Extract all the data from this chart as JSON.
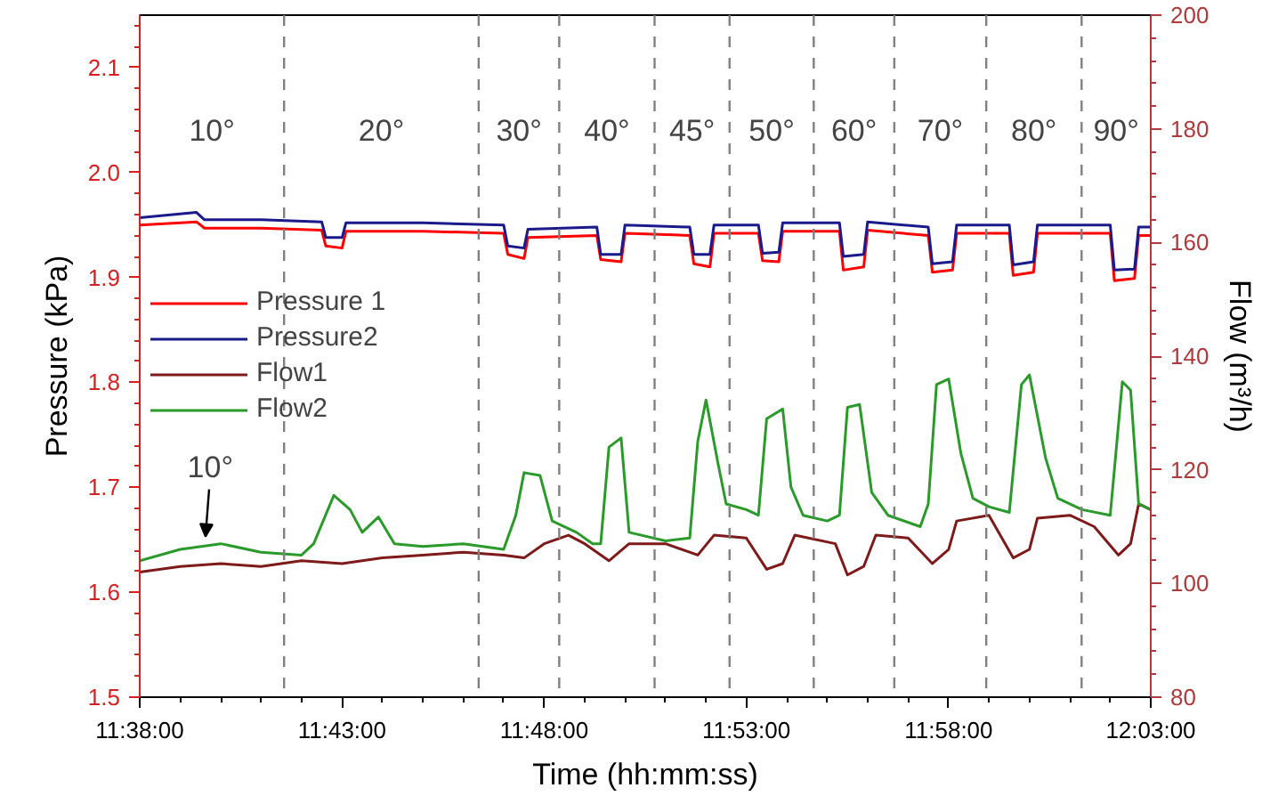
{
  "chart_data": {
    "type": "line",
    "xlabel": "Time (hh:mm:ss)",
    "ylabel": "Pressure (kPa)",
    "y2label": "Flow (m³/h)",
    "xlim": [
      11.6333,
      12.05
    ],
    "ylim": [
      1.5,
      2.15
    ],
    "y2lim": [
      80,
      200
    ],
    "xticks": [
      {
        "value": 11.6333,
        "label": "11:38:00"
      },
      {
        "value": 11.65,
        "label": null
      },
      {
        "value": 11.6667,
        "label": null
      },
      {
        "value": 11.6833,
        "label": null
      },
      {
        "value": 11.7,
        "label": null
      },
      {
        "value": 11.7167,
        "label": "11:43:00"
      },
      {
        "value": 11.7333,
        "label": null
      },
      {
        "value": 11.75,
        "label": null
      },
      {
        "value": 11.7667,
        "label": null
      },
      {
        "value": 11.7833,
        "label": null
      },
      {
        "value": 11.8,
        "label": "11:48:00"
      },
      {
        "value": 11.8167,
        "label": null
      },
      {
        "value": 11.8333,
        "label": null
      },
      {
        "value": 11.85,
        "label": null
      },
      {
        "value": 11.8667,
        "label": null
      },
      {
        "value": 11.8833,
        "label": "11:53:00"
      },
      {
        "value": 11.9,
        "label": null
      },
      {
        "value": 11.9167,
        "label": null
      },
      {
        "value": 11.9333,
        "label": null
      },
      {
        "value": 11.95,
        "label": null
      },
      {
        "value": 11.9667,
        "label": "11:58:00"
      },
      {
        "value": 11.9833,
        "label": null
      },
      {
        "value": 12.0,
        "label": null
      },
      {
        "value": 12.0167,
        "label": null
      },
      {
        "value": 12.0333,
        "label": null
      },
      {
        "value": 12.05,
        "label": "12:03:00"
      }
    ],
    "yticks": [
      1.5,
      {
        "value": 1.52,
        "label": null
      },
      {
        "value": 1.54,
        "label": null
      },
      {
        "value": 1.56,
        "label": null
      },
      {
        "value": 1.58,
        "label": null
      },
      1.6,
      {
        "value": 1.62,
        "label": null
      },
      {
        "value": 1.64,
        "label": null
      },
      {
        "value": 1.66,
        "label": null
      },
      {
        "value": 1.68,
        "label": null
      },
      1.7,
      {
        "value": 1.72,
        "label": null
      },
      {
        "value": 1.74,
        "label": null
      },
      {
        "value": 1.76,
        "label": null
      },
      {
        "value": 1.78,
        "label": null
      },
      1.8,
      {
        "value": 1.82,
        "label": null
      },
      {
        "value": 1.84,
        "label": null
      },
      {
        "value": 1.86,
        "label": null
      },
      {
        "value": 1.88,
        "label": null
      },
      1.9,
      {
        "value": 1.92,
        "label": null
      },
      {
        "value": 1.94,
        "label": null
      },
      {
        "value": 1.96,
        "label": null
      },
      {
        "value": 1.98,
        "label": null
      },
      {
        "value": 2.0,
        "label": "2.0"
      },
      {
        "value": 2.02,
        "label": null
      },
      {
        "value": 2.04,
        "label": null
      },
      {
        "value": 2.06,
        "label": null
      },
      {
        "value": 2.08,
        "label": null
      },
      2.1,
      {
        "value": 2.12,
        "label": null
      },
      {
        "value": 2.14,
        "label": null
      }
    ],
    "y2ticks": [
      80,
      {
        "value": 84,
        "label": null
      },
      {
        "value": 88,
        "label": null
      },
      {
        "value": 92,
        "label": null
      },
      {
        "value": 96,
        "label": null
      },
      100,
      {
        "value": 104,
        "label": null
      },
      {
        "value": 108,
        "label": null
      },
      {
        "value": 112,
        "label": null
      },
      {
        "value": 116,
        "label": null
      },
      120,
      {
        "value": 124,
        "label": null
      },
      {
        "value": 128,
        "label": null
      },
      {
        "value": 132,
        "label": null
      },
      {
        "value": 136,
        "label": null
      },
      140,
      {
        "value": 144,
        "label": null
      },
      {
        "value": 148,
        "label": null
      },
      {
        "value": 152,
        "label": null
      },
      {
        "value": 156,
        "label": null
      },
      160,
      {
        "value": 164,
        "label": null
      },
      {
        "value": 168,
        "label": null
      },
      {
        "value": 172,
        "label": null
      },
      {
        "value": 176,
        "label": null
      },
      180,
      {
        "value": 184,
        "label": null
      },
      {
        "value": 188,
        "label": null
      },
      {
        "value": 192,
        "label": null
      },
      {
        "value": 196,
        "label": null
      },
      200
    ],
    "x": [
      11.6333,
      11.6567,
      11.66,
      11.6833,
      11.7083,
      11.71,
      11.7167,
      11.7183,
      11.75,
      11.7833,
      11.785,
      11.7917,
      11.7933,
      11.8217,
      11.8233,
      11.8317,
      11.8333,
      11.86,
      11.8617,
      11.8683,
      11.87,
      11.8883,
      11.89,
      11.8967,
      11.8983,
      11.9217,
      11.9233,
      11.9317,
      11.9333,
      11.9583,
      11.96,
      11.9683,
      11.97,
      11.9917,
      11.9933,
      12.0017,
      12.0033,
      12.0333,
      12.035,
      12.0433,
      12.045,
      12.05
    ],
    "series": [
      {
        "name": "Pressure 1",
        "color": "#ff0000",
        "values": [
          1.95,
          1.953,
          1.947,
          1.947,
          1.945,
          1.93,
          1.928,
          1.944,
          1.944,
          1.942,
          1.922,
          1.918,
          1.938,
          1.94,
          1.917,
          1.915,
          1.942,
          1.94,
          1.913,
          1.91,
          1.942,
          1.942,
          1.916,
          1.915,
          1.944,
          1.944,
          1.907,
          1.91,
          1.945,
          1.94,
          1.905,
          1.907,
          1.942,
          1.942,
          1.902,
          1.905,
          1.942,
          1.942,
          1.897,
          1.899,
          1.94,
          1.94
        ]
      },
      {
        "name": "Pressure2",
        "color": "#1a1a8c",
        "values": [
          1.957,
          1.962,
          1.955,
          1.955,
          1.953,
          1.938,
          1.938,
          1.952,
          1.952,
          1.95,
          1.93,
          1.928,
          1.946,
          1.948,
          1.922,
          1.922,
          1.95,
          1.948,
          1.922,
          1.922,
          1.95,
          1.95,
          1.923,
          1.924,
          1.952,
          1.952,
          1.92,
          1.922,
          1.953,
          1.948,
          1.913,
          1.915,
          1.95,
          1.95,
          1.912,
          1.915,
          1.95,
          1.95,
          1.907,
          1.908,
          1.948,
          1.948
        ]
      },
      {
        "name": "Flow1",
        "color": "#7f1a1a",
        "axis": "y2",
        "x": [
          11.6333,
          11.65,
          11.6667,
          11.6833,
          11.7,
          11.7167,
          11.7333,
          11.75,
          11.7667,
          11.7833,
          11.7917,
          11.8,
          11.81,
          11.8167,
          11.8267,
          11.835,
          11.85,
          11.8633,
          11.87,
          11.8833,
          11.8917,
          11.8983,
          11.9033,
          11.92,
          11.925,
          11.9317,
          11.9367,
          11.95,
          11.96,
          11.9667,
          11.97,
          11.9833,
          11.9933,
          12.0,
          12.0033,
          12.0167,
          12.0267,
          12.0367,
          12.0417,
          12.045,
          12.05
        ],
        "values": [
          102,
          103,
          103.5,
          103,
          104,
          103.5,
          104.5,
          105,
          105.5,
          105,
          104.5,
          107,
          108.5,
          107,
          104,
          107,
          107,
          105,
          108.5,
          108,
          102.5,
          103.5,
          108.5,
          107,
          101.5,
          103,
          108.5,
          108,
          103.5,
          106,
          111,
          112,
          104.5,
          106,
          111.5,
          112,
          110,
          105,
          107,
          114,
          113
        ]
      },
      {
        "name": "Flow2",
        "color": "#2a9a2a",
        "axis": "y2",
        "x": [
          11.6333,
          11.65,
          11.6667,
          11.6833,
          11.7,
          11.705,
          11.7133,
          11.72,
          11.725,
          11.7317,
          11.7383,
          11.75,
          11.7667,
          11.7833,
          11.7883,
          11.7917,
          11.7983,
          11.8033,
          11.8133,
          11.82,
          11.8233,
          11.8267,
          11.8317,
          11.835,
          11.85,
          11.86,
          11.8633,
          11.8667,
          11.8717,
          11.875,
          11.8833,
          11.8883,
          11.8917,
          11.8983,
          11.9017,
          11.9067,
          11.9167,
          11.9217,
          11.925,
          11.93,
          11.935,
          11.9417,
          11.955,
          11.9583,
          11.9617,
          11.9667,
          11.9717,
          11.9767,
          11.9833,
          11.9917,
          11.9967,
          12.0,
          12.0067,
          12.0117,
          12.0217,
          12.0333,
          12.0383,
          12.0417,
          12.045,
          12.05
        ],
        "values": [
          104,
          106,
          107,
          105.5,
          105,
          107,
          115.5,
          113,
          109,
          111.7,
          107,
          106.5,
          107,
          106,
          112,
          119.5,
          119,
          111,
          109,
          107,
          107,
          124,
          125.6,
          109,
          107.5,
          108,
          125,
          132.3,
          121,
          114,
          113,
          112,
          129,
          130.7,
          117,
          112,
          111,
          112,
          131,
          131.5,
          116,
          112,
          110,
          114,
          135,
          136,
          123,
          115,
          113.5,
          112.5,
          135,
          136.7,
          122,
          115,
          113,
          112,
          135.5,
          134,
          114,
          113
        ]
      }
    ],
    "ref_lines": [
      {
        "axis": "x",
        "value": 11.6928,
        "color": "#808080",
        "line_style": "dashed"
      },
      {
        "axis": "x",
        "value": 11.773,
        "color": "#808080",
        "line_style": "dashed"
      },
      {
        "axis": "x",
        "value": 11.8062,
        "color": "#808080",
        "line_style": "dashed"
      },
      {
        "axis": "x",
        "value": 11.8455,
        "color": "#808080",
        "line_style": "dashed"
      },
      {
        "axis": "x",
        "value": 11.8764,
        "color": "#808080",
        "line_style": "dashed"
      },
      {
        "axis": "x",
        "value": 11.9111,
        "color": "#808080",
        "line_style": "dashed"
      },
      {
        "axis": "x",
        "value": 11.9443,
        "color": "#808080",
        "line_style": "dashed"
      },
      {
        "axis": "x",
        "value": 11.9822,
        "color": "#808080",
        "line_style": "dashed"
      },
      {
        "axis": "x",
        "value": 12.0215,
        "color": "#808080",
        "line_style": "dashed"
      }
    ],
    "annotations": [
      "10°",
      "20°",
      "30°",
      "40°",
      "45°",
      "50°",
      "60°",
      "70°",
      "80°",
      "90°",
      {
        "text": "10°",
        "x": 11.6604,
        "y": 1.653
      }
    ],
    "legend": "left",
    "grid": false,
    "marker": "none",
    "line_style": "solid"
  }
}
